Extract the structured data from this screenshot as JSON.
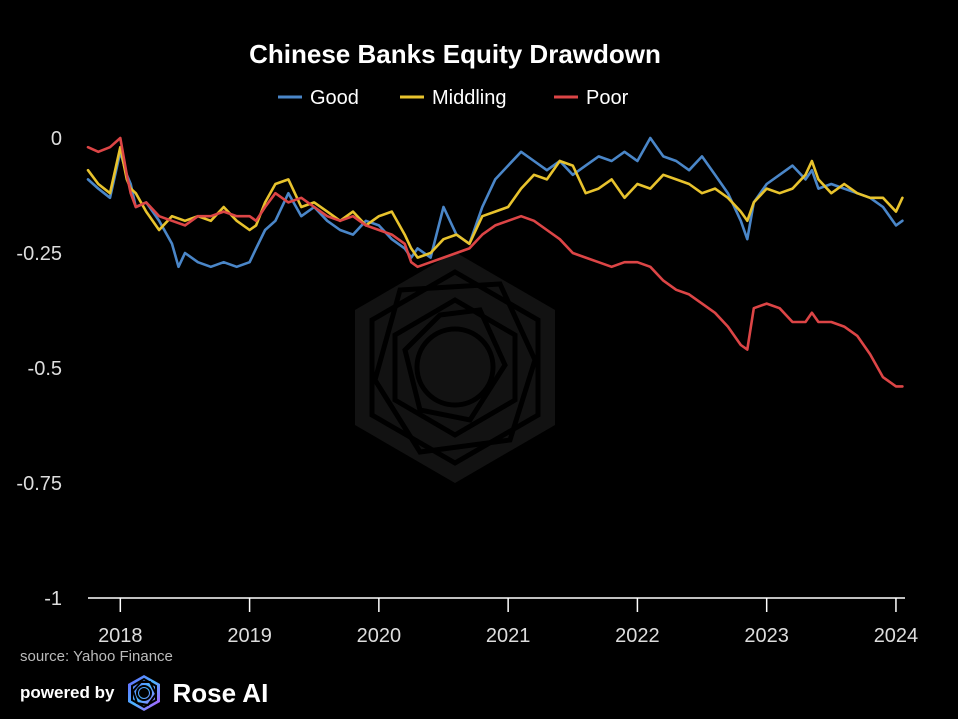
{
  "chart_data": {
    "type": "line",
    "title": "Chinese Banks Equity Drawdown",
    "xlabel": "",
    "ylabel": "",
    "ylim": [
      -1,
      0
    ],
    "xlim": [
      2017.75,
      2024.07
    ],
    "grid": false,
    "legend_position": "top-center",
    "yticks": [
      0,
      -0.25,
      -0.5,
      -0.75,
      -1
    ],
    "ytick_labels": [
      "0",
      "-0.25",
      "-0.5",
      "-0.75",
      "-1"
    ],
    "xticks": [
      2018,
      2019,
      2020,
      2021,
      2022,
      2023,
      2024
    ],
    "xtick_labels": [
      "2018",
      "2019",
      "2020",
      "2021",
      "2022",
      "2023",
      "2024"
    ],
    "series": [
      {
        "name": "Good",
        "color": "#4a86c8",
        "x": [
          2017.75,
          2017.83,
          2017.92,
          2018.0,
          2018.05,
          2018.08,
          2018.12,
          2018.2,
          2018.3,
          2018.4,
          2018.45,
          2018.5,
          2018.6,
          2018.7,
          2018.8,
          2018.9,
          2019.0,
          2019.05,
          2019.12,
          2019.2,
          2019.3,
          2019.4,
          2019.5,
          2019.6,
          2019.7,
          2019.8,
          2019.9,
          2020.0,
          2020.1,
          2020.2,
          2020.25,
          2020.3,
          2020.4,
          2020.5,
          2020.6,
          2020.7,
          2020.8,
          2020.9,
          2021.0,
          2021.1,
          2021.2,
          2021.3,
          2021.4,
          2021.5,
          2021.6,
          2021.7,
          2021.8,
          2021.9,
          2022.0,
          2022.1,
          2022.15,
          2022.2,
          2022.3,
          2022.4,
          2022.5,
          2022.6,
          2022.7,
          2022.8,
          2022.85,
          2022.9,
          2023.0,
          2023.1,
          2023.2,
          2023.3,
          2023.35,
          2023.4,
          2023.5,
          2023.6,
          2023.7,
          2023.8,
          2023.9,
          2024.0,
          2024.05
        ],
        "values": [
          -0.09,
          -0.11,
          -0.13,
          -0.03,
          -0.08,
          -0.1,
          -0.15,
          -0.14,
          -0.18,
          -0.23,
          -0.28,
          -0.25,
          -0.27,
          -0.28,
          -0.27,
          -0.28,
          -0.27,
          -0.24,
          -0.2,
          -0.18,
          -0.12,
          -0.17,
          -0.15,
          -0.18,
          -0.2,
          -0.21,
          -0.18,
          -0.19,
          -0.22,
          -0.24,
          -0.26,
          -0.24,
          -0.26,
          -0.15,
          -0.21,
          -0.23,
          -0.15,
          -0.09,
          -0.06,
          -0.03,
          -0.05,
          -0.07,
          -0.05,
          -0.08,
          -0.06,
          -0.04,
          -0.05,
          -0.03,
          -0.05,
          0.0,
          -0.02,
          -0.04,
          -0.05,
          -0.07,
          -0.04,
          -0.08,
          -0.12,
          -0.18,
          -0.22,
          -0.14,
          -0.1,
          -0.08,
          -0.06,
          -0.09,
          -0.07,
          -0.11,
          -0.1,
          -0.11,
          -0.12,
          -0.13,
          -0.15,
          -0.19,
          -0.18
        ]
      },
      {
        "name": "Middling",
        "color": "#e8c32d",
        "x": [
          2017.75,
          2017.83,
          2017.92,
          2018.0,
          2018.05,
          2018.08,
          2018.12,
          2018.2,
          2018.3,
          2018.4,
          2018.5,
          2018.6,
          2018.7,
          2018.8,
          2018.9,
          2019.0,
          2019.05,
          2019.12,
          2019.2,
          2019.3,
          2019.4,
          2019.5,
          2019.6,
          2019.7,
          2019.8,
          2019.9,
          2020.0,
          2020.1,
          2020.2,
          2020.25,
          2020.3,
          2020.4,
          2020.5,
          2020.6,
          2020.7,
          2020.8,
          2020.9,
          2021.0,
          2021.1,
          2021.2,
          2021.3,
          2021.4,
          2021.5,
          2021.6,
          2021.7,
          2021.8,
          2021.9,
          2022.0,
          2022.1,
          2022.2,
          2022.3,
          2022.4,
          2022.5,
          2022.6,
          2022.7,
          2022.8,
          2022.85,
          2022.9,
          2023.0,
          2023.1,
          2023.2,
          2023.3,
          2023.35,
          2023.4,
          2023.5,
          2023.6,
          2023.7,
          2023.8,
          2023.9,
          2024.0,
          2024.05
        ],
        "values": [
          -0.07,
          -0.1,
          -0.12,
          -0.02,
          -0.09,
          -0.11,
          -0.12,
          -0.16,
          -0.2,
          -0.17,
          -0.18,
          -0.17,
          -0.18,
          -0.15,
          -0.18,
          -0.2,
          -0.19,
          -0.14,
          -0.1,
          -0.09,
          -0.15,
          -0.14,
          -0.16,
          -0.18,
          -0.16,
          -0.19,
          -0.17,
          -0.16,
          -0.21,
          -0.24,
          -0.26,
          -0.25,
          -0.22,
          -0.21,
          -0.23,
          -0.17,
          -0.16,
          -0.15,
          -0.11,
          -0.08,
          -0.09,
          -0.05,
          -0.06,
          -0.12,
          -0.11,
          -0.09,
          -0.13,
          -0.1,
          -0.11,
          -0.08,
          -0.09,
          -0.1,
          -0.12,
          -0.11,
          -0.13,
          -0.16,
          -0.18,
          -0.14,
          -0.11,
          -0.12,
          -0.11,
          -0.08,
          -0.05,
          -0.09,
          -0.12,
          -0.1,
          -0.12,
          -0.13,
          -0.13,
          -0.16,
          -0.13
        ]
      },
      {
        "name": "Poor",
        "color": "#dc4546",
        "x": [
          2017.75,
          2017.83,
          2017.92,
          2018.0,
          2018.05,
          2018.08,
          2018.12,
          2018.2,
          2018.3,
          2018.4,
          2018.5,
          2018.6,
          2018.7,
          2018.8,
          2018.9,
          2019.0,
          2019.05,
          2019.12,
          2019.2,
          2019.3,
          2019.4,
          2019.5,
          2019.6,
          2019.7,
          2019.8,
          2019.9,
          2020.0,
          2020.1,
          2020.2,
          2020.25,
          2020.3,
          2020.4,
          2020.5,
          2020.6,
          2020.7,
          2020.8,
          2020.9,
          2021.0,
          2021.1,
          2021.2,
          2021.3,
          2021.4,
          2021.5,
          2021.6,
          2021.7,
          2021.8,
          2021.9,
          2022.0,
          2022.1,
          2022.2,
          2022.3,
          2022.4,
          2022.5,
          2022.6,
          2022.7,
          2022.8,
          2022.85,
          2022.9,
          2023.0,
          2023.1,
          2023.2,
          2023.3,
          2023.35,
          2023.4,
          2023.5,
          2023.6,
          2023.7,
          2023.8,
          2023.9,
          2024.0,
          2024.05
        ],
        "values": [
          -0.02,
          -0.03,
          -0.02,
          0.0,
          -0.08,
          -0.12,
          -0.15,
          -0.14,
          -0.17,
          -0.18,
          -0.19,
          -0.17,
          -0.17,
          -0.16,
          -0.17,
          -0.17,
          -0.18,
          -0.15,
          -0.12,
          -0.14,
          -0.13,
          -0.15,
          -0.17,
          -0.18,
          -0.17,
          -0.19,
          -0.2,
          -0.21,
          -0.23,
          -0.27,
          -0.28,
          -0.27,
          -0.26,
          -0.25,
          -0.24,
          -0.21,
          -0.19,
          -0.18,
          -0.17,
          -0.18,
          -0.2,
          -0.22,
          -0.25,
          -0.26,
          -0.27,
          -0.28,
          -0.27,
          -0.27,
          -0.28,
          -0.31,
          -0.33,
          -0.34,
          -0.36,
          -0.38,
          -0.41,
          -0.45,
          -0.46,
          -0.37,
          -0.36,
          -0.37,
          -0.4,
          -0.4,
          -0.38,
          -0.4,
          -0.4,
          -0.41,
          -0.43,
          -0.47,
          -0.52,
          -0.54,
          -0.54
        ]
      }
    ]
  },
  "footer": {
    "source": "source: Yahoo Finance",
    "powered_by": "powered by",
    "brand": "Rose AI"
  }
}
